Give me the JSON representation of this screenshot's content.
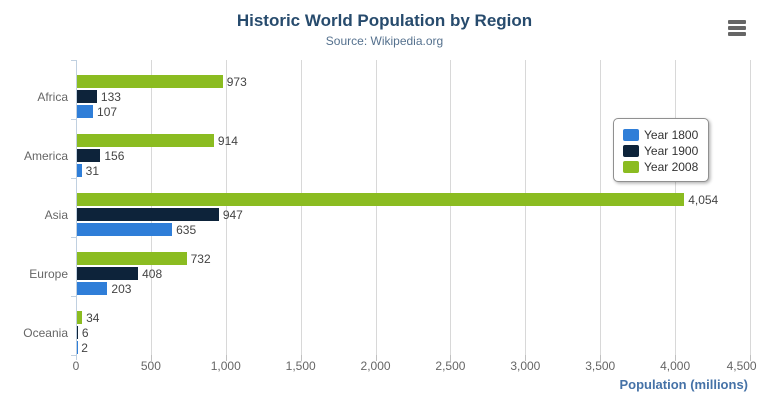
{
  "header": {
    "title": "Historic World Population by Region",
    "subtitle": "Source: Wikipedia.org"
  },
  "icons": {
    "export_menu": "hamburger-icon"
  },
  "chart_data": {
    "type": "bar",
    "orientation": "horizontal",
    "title": "Historic World Population by Region",
    "subtitle": "Source: Wikipedia.org",
    "categories": [
      "Africa",
      "America",
      "Asia",
      "Europe",
      "Oceania"
    ],
    "series": [
      {
        "name": "Year 1800",
        "color": "#2f7ed8",
        "values": [
          107,
          31,
          635,
          203,
          2
        ]
      },
      {
        "name": "Year 1900",
        "color": "#0d233a",
        "values": [
          133,
          156,
          947,
          408,
          6
        ]
      },
      {
        "name": "Year 2008",
        "color": "#8bbc21",
        "values": [
          973,
          914,
          4054,
          732,
          34
        ]
      }
    ],
    "bar_order_top_to_bottom": [
      "Year 2008",
      "Year 1900",
      "Year 1800"
    ],
    "data_labels": true,
    "xlabel": "Population (millions)",
    "xlim": [
      0,
      4500
    ],
    "x_ticks": [
      0,
      500,
      1000,
      1500,
      2000,
      2500,
      3000,
      3500,
      4000,
      4500
    ],
    "x_tick_labels": [
      "0",
      "500",
      "1,000",
      "1,500",
      "2,000",
      "2,500",
      "3,000",
      "3,500",
      "4,000",
      "4,500"
    ],
    "grid": true,
    "legend_position": "right-inside"
  },
  "colors": {
    "title": "#274b6d",
    "subtitle": "#55718e",
    "axis_title": "#4572a7",
    "axis_labels": "#666666",
    "data_labels": "#444444",
    "gridline": "#d8d8d8",
    "y_axis_line": "#c0d0e0",
    "legend_border": "#909090",
    "export_icon": "#666666"
  }
}
